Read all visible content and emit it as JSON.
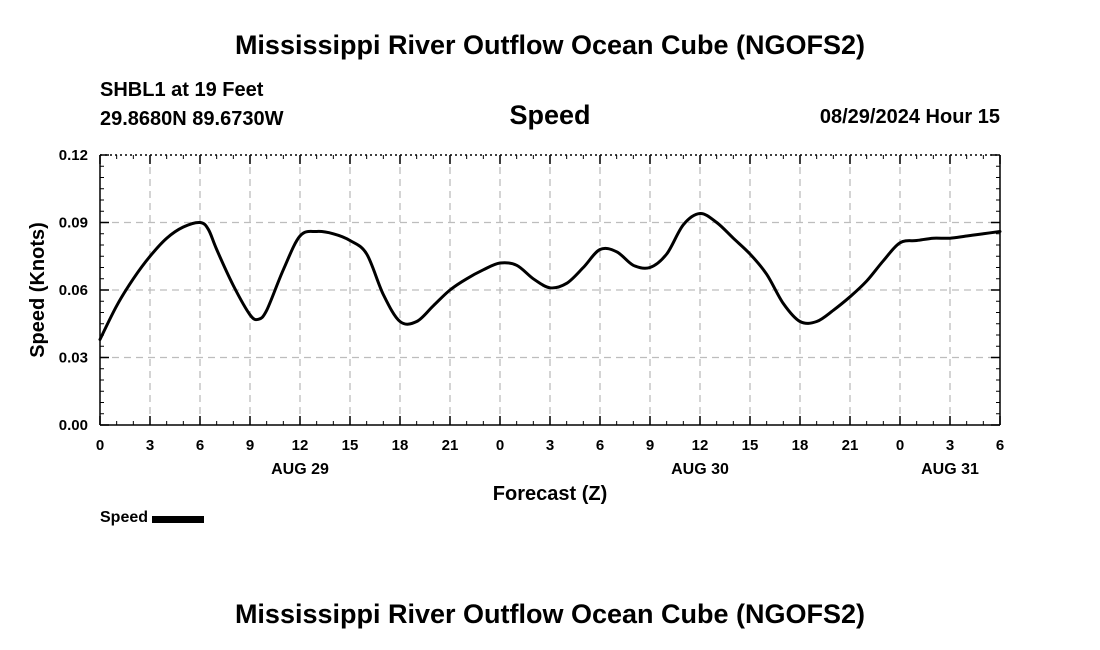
{
  "header": {
    "title": "Mississippi River Outflow Ocean Cube (NGOFS2)",
    "station_line1": "SHBL1 at 19 Feet",
    "station_line2": "29.8680N  89.6730W",
    "subtitle": "Speed",
    "datetime": "08/29/2024 Hour 15"
  },
  "footer": {
    "title": "Mississippi River Outflow Ocean Cube (NGOFS2)"
  },
  "legend": {
    "label": "Speed"
  },
  "chart_data": {
    "type": "line",
    "title": "Speed",
    "xlabel": "Forecast (Z)",
    "ylabel": "Speed (Knots)",
    "xlim": [
      0,
      54
    ],
    "ylim": [
      0,
      0.12
    ],
    "grid": true,
    "x_ticks": [
      {
        "x": 0,
        "label": "0"
      },
      {
        "x": 3,
        "label": "3"
      },
      {
        "x": 6,
        "label": "6"
      },
      {
        "x": 9,
        "label": "9"
      },
      {
        "x": 12,
        "label": "12"
      },
      {
        "x": 15,
        "label": "15"
      },
      {
        "x": 18,
        "label": "18"
      },
      {
        "x": 21,
        "label": "21"
      },
      {
        "x": 24,
        "label": "0"
      },
      {
        "x": 27,
        "label": "3"
      },
      {
        "x": 30,
        "label": "6"
      },
      {
        "x": 33,
        "label": "9"
      },
      {
        "x": 36,
        "label": "12"
      },
      {
        "x": 39,
        "label": "15"
      },
      {
        "x": 42,
        "label": "18"
      },
      {
        "x": 45,
        "label": "21"
      },
      {
        "x": 48,
        "label": "0"
      },
      {
        "x": 51,
        "label": "3"
      },
      {
        "x": 54,
        "label": "6"
      }
    ],
    "y_ticks": [
      {
        "y": 0,
        "label": "0.00"
      },
      {
        "y": 0.03,
        "label": "0.03"
      },
      {
        "y": 0.06,
        "label": "0.06"
      },
      {
        "y": 0.09,
        "label": "0.09"
      },
      {
        "y": 0.12,
        "label": "0.12"
      }
    ],
    "date_labels": [
      {
        "x": 12,
        "label": "AUG 29"
      },
      {
        "x": 36,
        "label": "AUG 30"
      },
      {
        "x": 51,
        "label": "AUG 31"
      }
    ],
    "series": [
      {
        "name": "Speed",
        "color": "#000000",
        "x": [
          0,
          1,
          2,
          3,
          4,
          5,
          6,
          6.5,
          7,
          8,
          9,
          9.5,
          10,
          11,
          12,
          13,
          14,
          15,
          16,
          17,
          18,
          19,
          20,
          21,
          22,
          23,
          24,
          25,
          26,
          27,
          28,
          29,
          30,
          31,
          32,
          33,
          34,
          35,
          36,
          37,
          38,
          39,
          40,
          41,
          42,
          43,
          44,
          45,
          46,
          47,
          48,
          49,
          50,
          51,
          52,
          53,
          54
        ],
        "values": [
          0.038,
          0.053,
          0.065,
          0.075,
          0.083,
          0.088,
          0.09,
          0.087,
          0.078,
          0.062,
          0.049,
          0.047,
          0.051,
          0.069,
          0.084,
          0.086,
          0.085,
          0.082,
          0.076,
          0.058,
          0.046,
          0.046,
          0.053,
          0.06,
          0.065,
          0.069,
          0.072,
          0.071,
          0.065,
          0.061,
          0.063,
          0.07,
          0.078,
          0.077,
          0.071,
          0.07,
          0.076,
          0.089,
          0.094,
          0.09,
          0.083,
          0.076,
          0.067,
          0.054,
          0.046,
          0.046,
          0.051,
          0.057,
          0.064,
          0.073,
          0.081,
          0.082,
          0.083,
          0.083,
          0.084,
          0.085,
          0.086
        ]
      }
    ]
  }
}
